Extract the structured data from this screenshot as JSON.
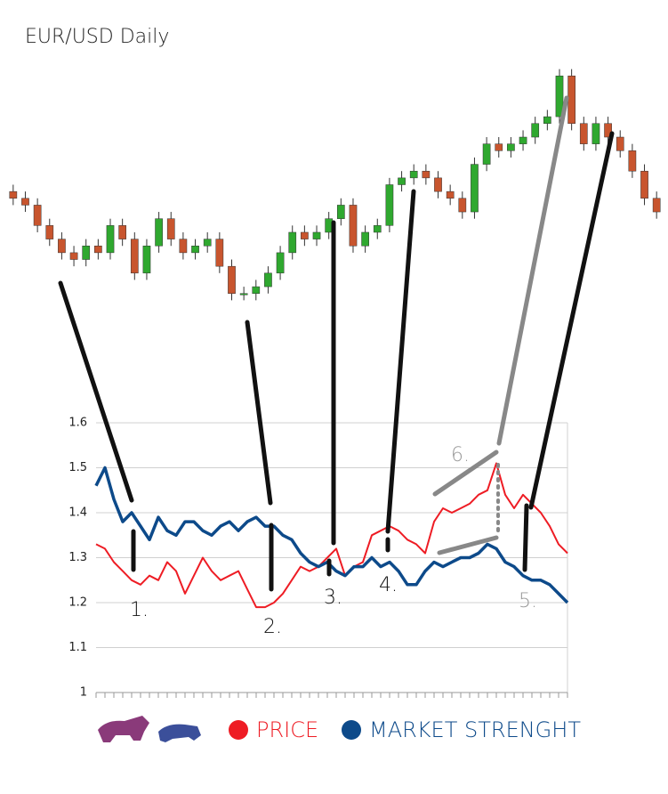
{
  "chart_data": [
    {
      "type": "candlestick",
      "title": "EUR/USD Daily",
      "open": [
        1.34,
        1.33,
        1.32,
        1.29,
        1.27,
        1.25,
        1.24,
        1.26,
        1.25,
        1.29,
        1.27,
        1.22,
        1.26,
        1.3,
        1.27,
        1.25,
        1.26,
        1.27,
        1.23,
        1.19,
        1.19,
        1.2,
        1.22,
        1.25,
        1.28,
        1.27,
        1.28,
        1.3,
        1.32,
        1.26,
        1.28,
        1.29,
        1.35,
        1.36,
        1.37,
        1.36,
        1.34,
        1.33,
        1.31,
        1.38,
        1.41,
        1.4,
        1.41,
        1.42,
        1.44,
        1.45,
        1.51,
        1.44,
        1.41,
        1.44,
        1.42,
        1.4,
        1.37,
        1.33
      ],
      "high": [
        1.35,
        1.34,
        1.33,
        1.3,
        1.28,
        1.26,
        1.27,
        1.27,
        1.3,
        1.3,
        1.28,
        1.27,
        1.31,
        1.31,
        1.28,
        1.27,
        1.28,
        1.28,
        1.24,
        1.2,
        1.21,
        1.23,
        1.26,
        1.29,
        1.29,
        1.29,
        1.31,
        1.33,
        1.33,
        1.29,
        1.3,
        1.36,
        1.37,
        1.38,
        1.38,
        1.37,
        1.35,
        1.34,
        1.39,
        1.42,
        1.42,
        1.42,
        1.43,
        1.45,
        1.46,
        1.52,
        1.52,
        1.45,
        1.45,
        1.45,
        1.43,
        1.41,
        1.38,
        1.34
      ],
      "low": [
        1.32,
        1.31,
        1.28,
        1.26,
        1.24,
        1.23,
        1.23,
        1.24,
        1.24,
        1.26,
        1.21,
        1.21,
        1.25,
        1.26,
        1.24,
        1.24,
        1.25,
        1.22,
        1.18,
        1.18,
        1.18,
        1.19,
        1.21,
        1.24,
        1.26,
        1.26,
        1.27,
        1.29,
        1.25,
        1.25,
        1.27,
        1.28,
        1.34,
        1.35,
        1.35,
        1.33,
        1.32,
        1.3,
        1.3,
        1.37,
        1.39,
        1.39,
        1.4,
        1.41,
        1.43,
        1.44,
        1.43,
        1.4,
        1.4,
        1.41,
        1.39,
        1.36,
        1.32,
        1.3
      ],
      "close": [
        1.33,
        1.32,
        1.29,
        1.27,
        1.25,
        1.24,
        1.26,
        1.25,
        1.29,
        1.27,
        1.22,
        1.26,
        1.3,
        1.27,
        1.25,
        1.26,
        1.27,
        1.23,
        1.19,
        1.19,
        1.2,
        1.22,
        1.25,
        1.28,
        1.27,
        1.28,
        1.3,
        1.32,
        1.26,
        1.28,
        1.29,
        1.35,
        1.36,
        1.37,
        1.36,
        1.34,
        1.33,
        1.31,
        1.38,
        1.41,
        1.4,
        1.41,
        1.42,
        1.44,
        1.45,
        1.51,
        1.44,
        1.41,
        1.44,
        1.42,
        1.4,
        1.37,
        1.33,
        1.31
      ],
      "up_color": "#2fa82f",
      "down_color": "#c8552e",
      "ylim": [
        1.17,
        1.53
      ]
    },
    {
      "type": "line",
      "categories": [
        null,
        null,
        null,
        null,
        null,
        null,
        null,
        null,
        null,
        null,
        null,
        null,
        null,
        null,
        null,
        null,
        null,
        null,
        null,
        null,
        null,
        null,
        null,
        null,
        null,
        null,
        null,
        null,
        null,
        null,
        null,
        null,
        null,
        null,
        null,
        null,
        null,
        null,
        null,
        null,
        null,
        null,
        null,
        null,
        null,
        null,
        null,
        null,
        null,
        null,
        null,
        null,
        null,
        null
      ],
      "series": [
        {
          "name": "PRICE",
          "color": "#ee1c24",
          "values": [
            1.33,
            1.32,
            1.29,
            1.27,
            1.25,
            1.24,
            1.26,
            1.25,
            1.29,
            1.27,
            1.22,
            1.26,
            1.3,
            1.27,
            1.25,
            1.26,
            1.27,
            1.23,
            1.19,
            1.19,
            1.2,
            1.22,
            1.25,
            1.28,
            1.27,
            1.28,
            1.3,
            1.32,
            1.26,
            1.28,
            1.29,
            1.35,
            1.36,
            1.37,
            1.36,
            1.34,
            1.33,
            1.31,
            1.38,
            1.41,
            1.4,
            1.41,
            1.42,
            1.44,
            1.45,
            1.51,
            1.44,
            1.41,
            1.44,
            1.42,
            1.4,
            1.37,
            1.33,
            1.31
          ]
        },
        {
          "name": "MARKET STRENGHT",
          "color": "#0d4a8a",
          "values": [
            1.46,
            1.5,
            1.43,
            1.38,
            1.4,
            1.37,
            1.34,
            1.39,
            1.36,
            1.35,
            1.38,
            1.38,
            1.36,
            1.35,
            1.37,
            1.38,
            1.36,
            1.38,
            1.39,
            1.37,
            1.37,
            1.35,
            1.34,
            1.31,
            1.29,
            1.28,
            1.29,
            1.27,
            1.26,
            1.28,
            1.28,
            1.3,
            1.28,
            1.29,
            1.27,
            1.24,
            1.24,
            1.27,
            1.29,
            1.28,
            1.29,
            1.3,
            1.3,
            1.31,
            1.33,
            1.32,
            1.29,
            1.28,
            1.26,
            1.25,
            1.25,
            1.24,
            1.22,
            1.2
          ]
        }
      ],
      "ylim": [
        1,
        1.6
      ],
      "yticks": [
        1,
        1.1,
        1.2,
        1.3,
        1.4,
        1.5,
        1.6
      ],
      "grid": true,
      "annotations": [
        "1.",
        "2.",
        "3.",
        "4.",
        "5.",
        "6."
      ]
    }
  ]
}
